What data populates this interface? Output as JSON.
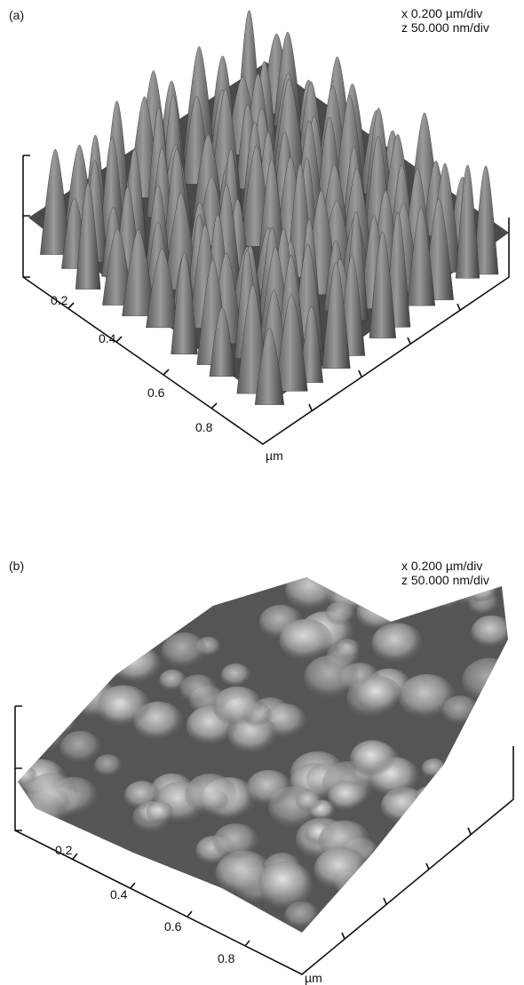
{
  "panels": [
    {
      "label": "(a)",
      "scale": [
        "x 0.200 µm/div",
        "z 50.000 nm/div"
      ],
      "ticks": [
        "0.2",
        "0.4",
        "0.6",
        "0.8"
      ],
      "unit": "µm"
    },
    {
      "label": "(b)",
      "scale": [
        "x 0.200 µm/div",
        "z 50.000 nm/div"
      ],
      "ticks": [
        "0.2",
        "0.4",
        "0.6",
        "0.8"
      ],
      "unit": "µm"
    }
  ]
}
